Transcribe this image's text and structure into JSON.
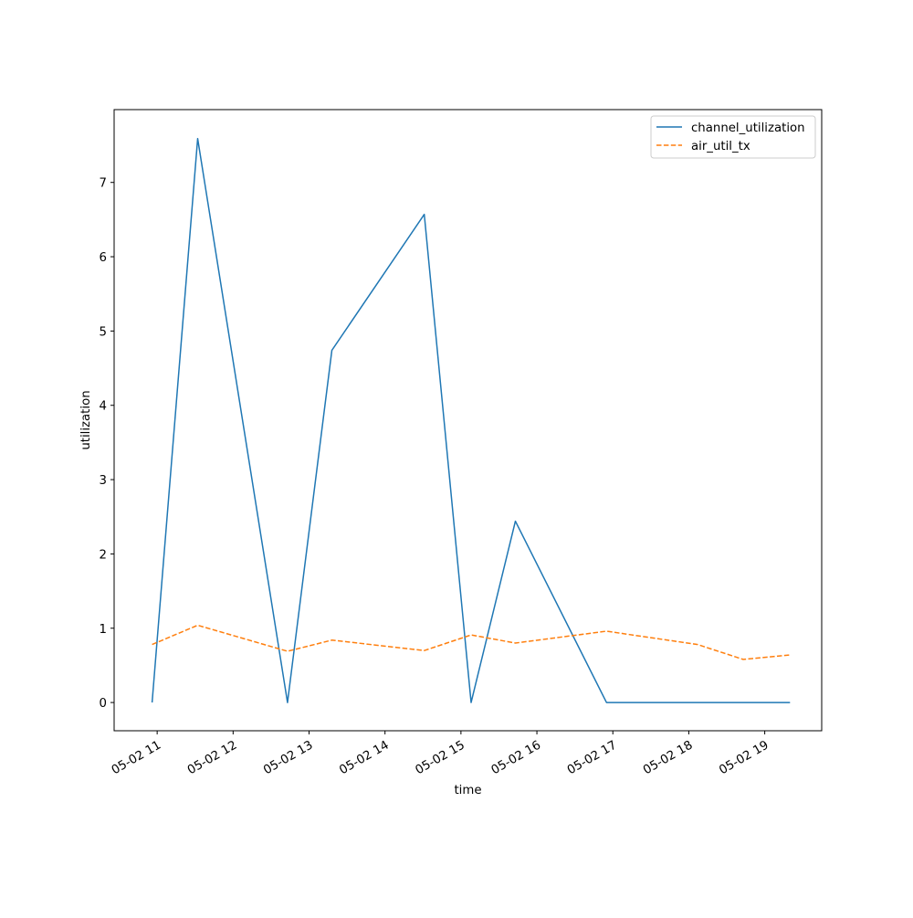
{
  "chart_data": {
    "type": "line",
    "title": "",
    "xlabel": "time",
    "ylabel": "utilization",
    "x": [
      "2025-05-02 10:56",
      "2025-05-02 11:32",
      "2025-05-02 12:43",
      "2025-05-02 13:18",
      "2025-05-02 14:31",
      "2025-05-02 15:08",
      "2025-05-02 15:43",
      "2025-05-02 16:55",
      "2025-05-02 18:07",
      "2025-05-02 18:43",
      "2025-05-02 19:20"
    ],
    "xlim": [
      "2025-05-02 10:26",
      "2025-05-02 19:45"
    ],
    "ylim": [
      -0.38,
      7.98
    ],
    "x_ticks": [
      {
        "at": "2025-05-02 11:00",
        "label": "05-02 11"
      },
      {
        "at": "2025-05-02 12:00",
        "label": "05-02 12"
      },
      {
        "at": "2025-05-02 13:00",
        "label": "05-02 13"
      },
      {
        "at": "2025-05-02 14:00",
        "label": "05-02 14"
      },
      {
        "at": "2025-05-02 15:00",
        "label": "05-02 15"
      },
      {
        "at": "2025-05-02 16:00",
        "label": "05-02 16"
      },
      {
        "at": "2025-05-02 17:00",
        "label": "05-02 17"
      },
      {
        "at": "2025-05-02 18:00",
        "label": "05-02 18"
      },
      {
        "at": "2025-05-02 19:00",
        "label": "05-02 19"
      }
    ],
    "y_ticks": [
      0,
      1,
      2,
      3,
      4,
      5,
      6,
      7
    ],
    "grid": false,
    "legend_position": "top-right",
    "series": [
      {
        "name": "channel_utilization",
        "color": "#1f77b4",
        "style": "solid",
        "values": [
          0,
          7.59,
          0,
          4.74,
          6.57,
          0,
          2.44,
          0,
          0,
          0,
          0
        ]
      },
      {
        "name": "air_util_tx",
        "color": "#ff7f0e",
        "style": "dashed",
        "values": [
          0.78,
          1.04,
          0.69,
          0.84,
          0.7,
          0.91,
          0.8,
          0.96,
          0.78,
          0.58,
          0.64
        ]
      }
    ]
  }
}
